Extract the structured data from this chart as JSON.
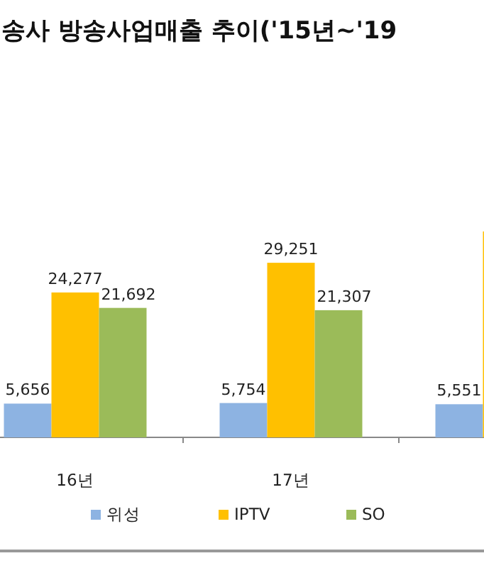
{
  "chart_data": {
    "type": "bar",
    "title": "송사 방송사업매출 추이('15년~'19",
    "categories": [
      "16년",
      "17년",
      null
    ],
    "legend": "bottom",
    "series": [
      {
        "name": "위성",
        "color": "#8db3e2",
        "values": [
          5656,
          5754,
          5551
        ],
        "value_labels": [
          "5,656",
          "5,754",
          "5,551"
        ]
      },
      {
        "name": "IPTV",
        "color": "#ffc000",
        "values": [
          24277,
          29251,
          34500
        ],
        "value_labels": [
          "24,277",
          "29,251",
          null
        ]
      },
      {
        "name": "SO",
        "color": "#9bbb59",
        "values": [
          21692,
          21307,
          null
        ],
        "value_labels": [
          "21,692",
          "21,307",
          null
        ]
      }
    ]
  }
}
